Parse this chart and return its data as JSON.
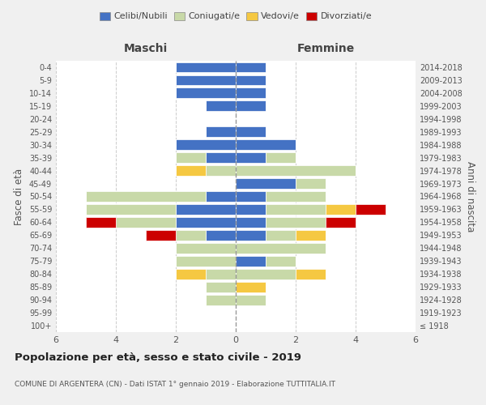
{
  "age_groups": [
    "100+",
    "95-99",
    "90-94",
    "85-89",
    "80-84",
    "75-79",
    "70-74",
    "65-69",
    "60-64",
    "55-59",
    "50-54",
    "45-49",
    "40-44",
    "35-39",
    "30-34",
    "25-29",
    "20-24",
    "15-19",
    "10-14",
    "5-9",
    "0-4"
  ],
  "birth_years": [
    "≤ 1918",
    "1919-1923",
    "1924-1928",
    "1929-1933",
    "1934-1938",
    "1939-1943",
    "1944-1948",
    "1949-1953",
    "1954-1958",
    "1959-1963",
    "1964-1968",
    "1969-1973",
    "1974-1978",
    "1979-1983",
    "1984-1988",
    "1989-1993",
    "1994-1998",
    "1999-2003",
    "2004-2008",
    "2009-2013",
    "2014-2018"
  ],
  "maschi": {
    "celibi": [
      0,
      0,
      0,
      0,
      0,
      0,
      0,
      1,
      2,
      2,
      1,
      0,
      0,
      1,
      2,
      1,
      0,
      1,
      2,
      2,
      2
    ],
    "coniugati": [
      0,
      0,
      1,
      1,
      1,
      2,
      2,
      1,
      2,
      3,
      4,
      0,
      1,
      1,
      0,
      0,
      0,
      0,
      0,
      0,
      0
    ],
    "vedovi": [
      0,
      0,
      0,
      0,
      1,
      0,
      0,
      0,
      0,
      0,
      0,
      0,
      1,
      0,
      0,
      0,
      0,
      0,
      0,
      0,
      0
    ],
    "divorziati": [
      0,
      0,
      0,
      0,
      0,
      0,
      0,
      1,
      1,
      0,
      0,
      0,
      0,
      0,
      0,
      0,
      0,
      0,
      0,
      0,
      0
    ]
  },
  "femmine": {
    "celibi": [
      0,
      0,
      0,
      0,
      0,
      1,
      0,
      1,
      1,
      1,
      1,
      2,
      0,
      1,
      2,
      1,
      0,
      1,
      1,
      1,
      1
    ],
    "coniugati": [
      0,
      0,
      1,
      0,
      2,
      1,
      3,
      1,
      2,
      2,
      2,
      1,
      4,
      1,
      0,
      0,
      0,
      0,
      0,
      0,
      0
    ],
    "vedovi": [
      0,
      0,
      0,
      1,
      1,
      0,
      0,
      1,
      0,
      1,
      0,
      0,
      0,
      0,
      0,
      0,
      0,
      0,
      0,
      0,
      0
    ],
    "divorziati": [
      0,
      0,
      0,
      0,
      0,
      0,
      0,
      0,
      1,
      1,
      0,
      0,
      0,
      0,
      0,
      0,
      0,
      0,
      0,
      0,
      0
    ]
  },
  "colors": {
    "celibi": "#4472c4",
    "coniugati": "#c8d9a8",
    "vedovi": "#f5c842",
    "divorziati": "#cc0000"
  },
  "legend_labels": [
    "Celibi/Nubili",
    "Coniugati/e",
    "Vedovi/e",
    "Divorziati/e"
  ],
  "title": "Popolazione per età, sesso e stato civile - 2019",
  "subtitle": "COMUNE DI ARGENTERA (CN) - Dati ISTAT 1° gennaio 2019 - Elaborazione TUTTITALIA.IT",
  "label_maschi": "Maschi",
  "label_femmine": "Femmine",
  "ylabel_left": "Fasce di età",
  "ylabel_right": "Anni di nascita",
  "xlim": 6,
  "bg_color": "#f0f0f0",
  "plot_bg_color": "#ffffff",
  "grid_color": "#cccccc"
}
